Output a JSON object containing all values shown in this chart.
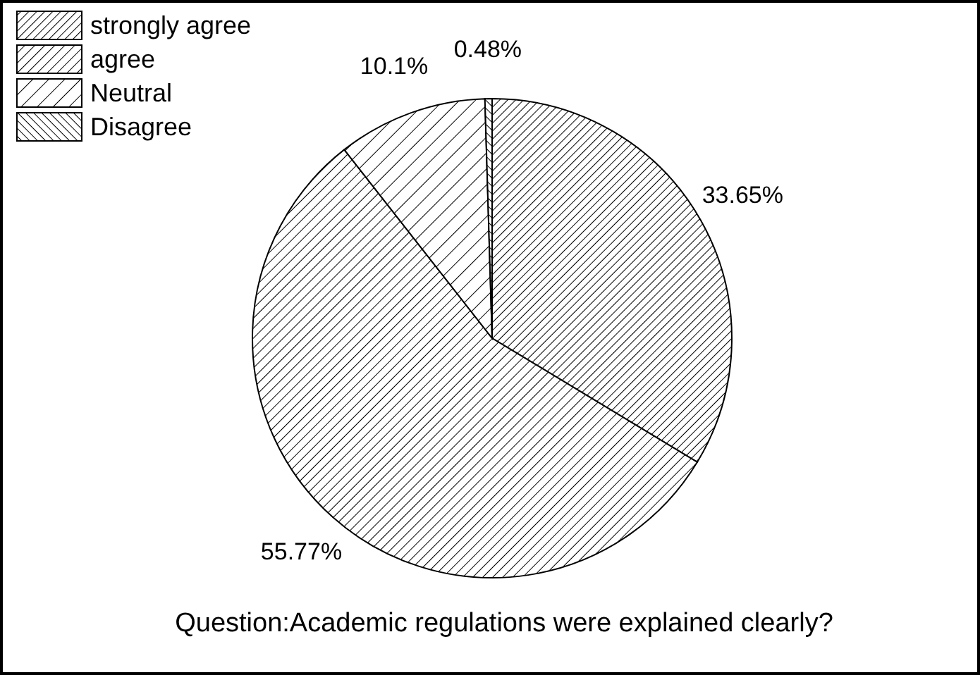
{
  "chart_data": {
    "type": "pie",
    "title": "Question:Academic regulations were explained clearly?",
    "categories": [
      "strongly agree",
      "agree",
      "Neutral",
      "Disagree"
    ],
    "values": [
      33.65,
      55.77,
      10.1,
      0.48
    ],
    "value_labels": [
      "33.65%",
      "55.77%",
      "10.1%",
      "0.48%"
    ],
    "colors": [
      "#000000",
      "#000000",
      "#000000",
      "#000000"
    ],
    "legend": "top left"
  }
}
